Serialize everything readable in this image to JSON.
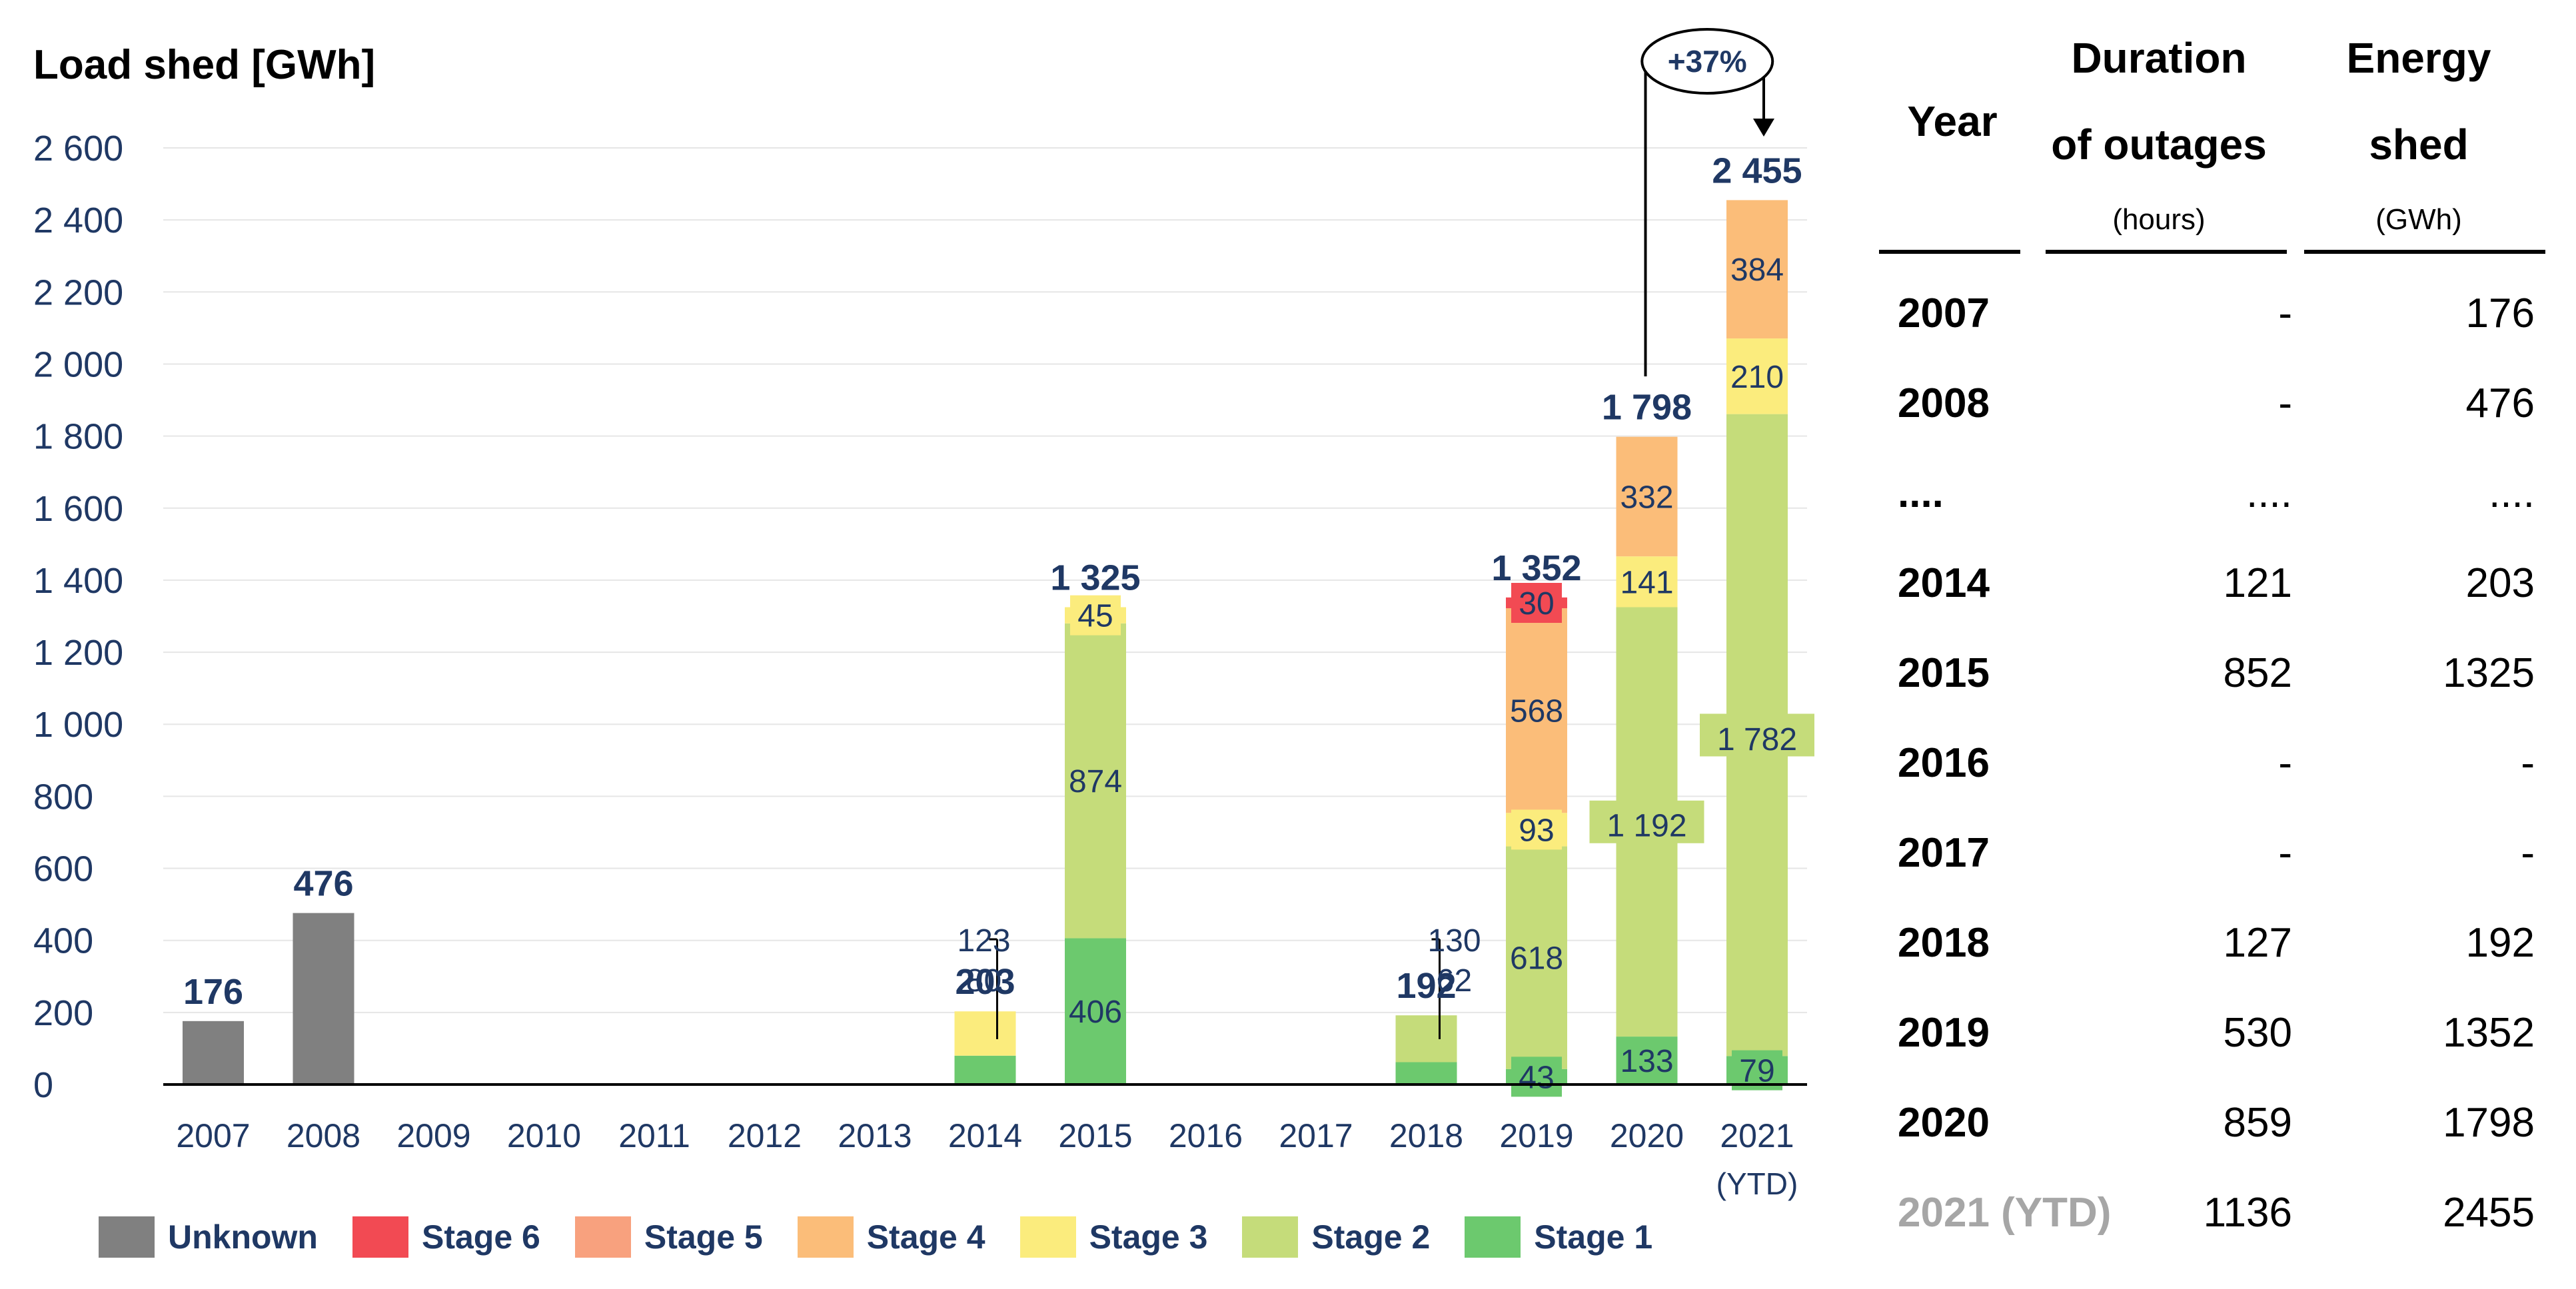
{
  "chart_data": {
    "type": "bar",
    "stacked": true,
    "title": "Load shed [GWh]",
    "ylim": [
      0,
      2600
    ],
    "yticks": [
      0,
      200,
      400,
      600,
      800,
      1000,
      1200,
      1400,
      1600,
      1800,
      2000,
      2200,
      2400,
      2600
    ],
    "ytick_labels": [
      "0",
      "200",
      "400",
      "600",
      "800",
      "1 000",
      "1 200",
      "1 400",
      "1 600",
      "1 800",
      "2 000",
      "2 200",
      "2 400",
      "2 600"
    ],
    "grid": true,
    "categories": [
      "2007",
      "2008",
      "2009",
      "2010",
      "2011",
      "2012",
      "2013",
      "2014",
      "2015",
      "2016",
      "2017",
      "2018",
      "2019",
      "2020",
      "2021"
    ],
    "category_sublabels": [
      "",
      "",
      "",
      "",
      "",
      "",
      "",
      "",
      "",
      "",
      "",
      "",
      "",
      "",
      "(YTD)"
    ],
    "series": [
      {
        "name": "Unknown",
        "color": "#808080",
        "values": [
          176,
          476,
          0,
          0,
          0,
          0,
          0,
          0,
          0,
          0,
          0,
          0,
          0,
          0,
          0
        ],
        "labels": [
          "",
          "",
          "",
          "",
          "",
          "",
          "",
          "",
          "",
          "",
          "",
          "",
          "",
          "",
          ""
        ]
      },
      {
        "name": "Stage 1",
        "color": "#6cc96e",
        "values": [
          0,
          0,
          0,
          0,
          0,
          0,
          0,
          80,
          406,
          0,
          0,
          62,
          43,
          133,
          79
        ],
        "labels": [
          "",
          "",
          "",
          "",
          "",
          "",
          "",
          "80",
          "406",
          "",
          "",
          "62",
          "43",
          "133",
          "79"
        ]
      },
      {
        "name": "Stage 2",
        "color": "#c5dc7a",
        "values": [
          0,
          0,
          0,
          0,
          0,
          0,
          0,
          0,
          874,
          0,
          0,
          130,
          618,
          1192,
          1782
        ],
        "labels": [
          "",
          "",
          "",
          "",
          "",
          "",
          "",
          "",
          "874",
          "",
          "",
          "130",
          "618",
          "1 192",
          "1 782"
        ]
      },
      {
        "name": "Stage 3",
        "color": "#fbec7d",
        "values": [
          0,
          0,
          0,
          0,
          0,
          0,
          0,
          123,
          45,
          0,
          0,
          0,
          93,
          141,
          210
        ],
        "labels": [
          "",
          "",
          "",
          "",
          "",
          "",
          "",
          "123",
          "45",
          "",
          "",
          "",
          "93",
          "141",
          "210"
        ]
      },
      {
        "name": "Stage 4",
        "color": "#fbbd79",
        "values": [
          0,
          0,
          0,
          0,
          0,
          0,
          0,
          0,
          0,
          0,
          0,
          0,
          568,
          332,
          384
        ],
        "labels": [
          "",
          "",
          "",
          "",
          "",
          "",
          "",
          "",
          "",
          "",
          "",
          "",
          "568",
          "332",
          "384"
        ]
      },
      {
        "name": "Stage 5",
        "color": "#f8a17e",
        "values": [
          0,
          0,
          0,
          0,
          0,
          0,
          0,
          0,
          0,
          0,
          0,
          0,
          0,
          0,
          0
        ],
        "labels": [
          "",
          "",
          "",
          "",
          "",
          "",
          "",
          "",
          "",
          "",
          "",
          "",
          "",
          "",
          ""
        ]
      },
      {
        "name": "Stage 6",
        "color": "#f24a53",
        "values": [
          0,
          0,
          0,
          0,
          0,
          0,
          0,
          0,
          0,
          0,
          0,
          0,
          30,
          0,
          0
        ],
        "labels": [
          "",
          "",
          "",
          "",
          "",
          "",
          "",
          "",
          "",
          "",
          "",
          "",
          "30",
          "",
          ""
        ]
      }
    ],
    "totals": [
      "176",
      "476",
      "",
      "",
      "",
      "",
      "",
      "203",
      "1 325",
      "",
      "",
      "192",
      "1 352",
      "1 798",
      "2 455"
    ],
    "annotation": {
      "text": "+37%",
      "from_category": "2020",
      "to_category": "2021"
    },
    "legend": {
      "position": "bottom",
      "entries": [
        "Unknown",
        "Stage 6",
        "Stage 5",
        "Stage 4",
        "Stage 3",
        "Stage 2",
        "Stage 1"
      ]
    }
  },
  "colors": {
    "axis_text": "#1f3864",
    "total_text": "#1f3864",
    "grid": "#e6e6e6"
  },
  "table": {
    "headers": {
      "year": "Year",
      "duration_line1": "Duration",
      "duration_line2": "of outages",
      "duration_unit": "(hours)",
      "energy_line1": "Energy",
      "energy_line2": "shed",
      "energy_unit": "(GWh)"
    },
    "rows": [
      {
        "year": "2007",
        "duration": "-",
        "energy": "176",
        "dim": false
      },
      {
        "year": "2008",
        "duration": "-",
        "energy": "476",
        "dim": false
      },
      {
        "year": "....",
        "duration": "....",
        "energy": "....",
        "dim": false
      },
      {
        "year": "2014",
        "duration": "121",
        "energy": "203",
        "dim": false
      },
      {
        "year": "2015",
        "duration": "852",
        "energy": "1325",
        "dim": false
      },
      {
        "year": "2016",
        "duration": "-",
        "energy": "-",
        "dim": false
      },
      {
        "year": "2017",
        "duration": "-",
        "energy": "-",
        "dim": false
      },
      {
        "year": "2018",
        "duration": "127",
        "energy": "192",
        "dim": false
      },
      {
        "year": "2019",
        "duration": "530",
        "energy": "1352",
        "dim": false
      },
      {
        "year": "2020",
        "duration": "859",
        "energy": "1798",
        "dim": false
      },
      {
        "year": "2021 (YTD)",
        "duration": "1136",
        "energy": "2455",
        "dim": true
      }
    ]
  }
}
